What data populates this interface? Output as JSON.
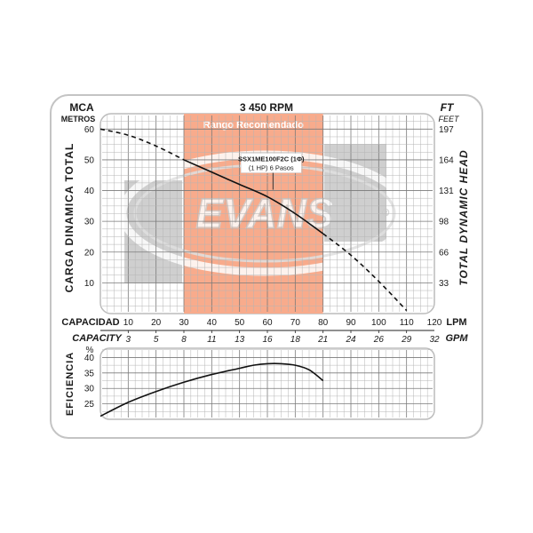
{
  "chart_data": [
    {
      "type": "line",
      "title": "3 450 RPM",
      "left_unit": [
        "MCA",
        "METROS"
      ],
      "right_unit": [
        "FT",
        "FEET"
      ],
      "ylabel": "CARGA DINAMICA TOTAL",
      "ylabel_right": "TOTAL DYNAMIC HEAD",
      "xlabel": "CAPACIDAD",
      "xlabel_unit": "LPM",
      "xlabel2": "CAPACITY",
      "xlabel2_unit": "GPM",
      "xlim": [
        0,
        120
      ],
      "ylim": [
        0,
        65
      ],
      "grid": true,
      "xticks": [
        10,
        20,
        30,
        40,
        50,
        60,
        70,
        80,
        90,
        100,
        110,
        120
      ],
      "xticks_gpm": [
        "3",
        "5",
        "8",
        "11",
        "13",
        "16",
        "18",
        "21",
        "24",
        "26",
        "29",
        "32"
      ],
      "yticks": [
        10,
        20,
        30,
        40,
        50,
        60
      ],
      "yticks_ft": [
        "33",
        "66",
        "98",
        "131",
        "164",
        "197"
      ],
      "recommended_range": {
        "label": "Rango Recomendado",
        "x": [
          30,
          80
        ]
      },
      "annotation": {
        "lines": [
          "SSX1ME100F2C (1Φ)",
          "(1 HP)  6 Pasos"
        ],
        "x": 62,
        "y": 40
      },
      "series": [
        {
          "name": "",
          "style": "solid-dashed",
          "x": [
            0,
            10,
            20,
            30,
            40,
            50,
            60,
            70,
            80,
            90,
            100,
            110
          ],
          "y": [
            60,
            58,
            54.5,
            50,
            46,
            42,
            38,
            32.5,
            26,
            19,
            10.5,
            1
          ]
        }
      ]
    },
    {
      "type": "line",
      "ylabel": "EFICIENCIA",
      "yunit": "%",
      "xlim": [
        0,
        120
      ],
      "ylim": [
        20,
        43
      ],
      "grid": true,
      "yticks": [
        25,
        30,
        35,
        40
      ],
      "series": [
        {
          "name": "",
          "x": [
            0,
            10,
            20,
            30,
            40,
            50,
            55,
            60,
            65,
            70,
            75,
            80
          ],
          "y": [
            21,
            25.5,
            29,
            32,
            34.5,
            36.5,
            37.5,
            38,
            38,
            37.5,
            36,
            32.5
          ]
        }
      ]
    }
  ],
  "logo": {
    "text": "EVANS",
    "mark": "®"
  },
  "colors": {
    "range_fill": "#f8ab8c",
    "grey_block": "#cfcfcf",
    "curve": "#111111",
    "panel_border": "#b8b8b8",
    "grid": "#9a9a9a"
  }
}
